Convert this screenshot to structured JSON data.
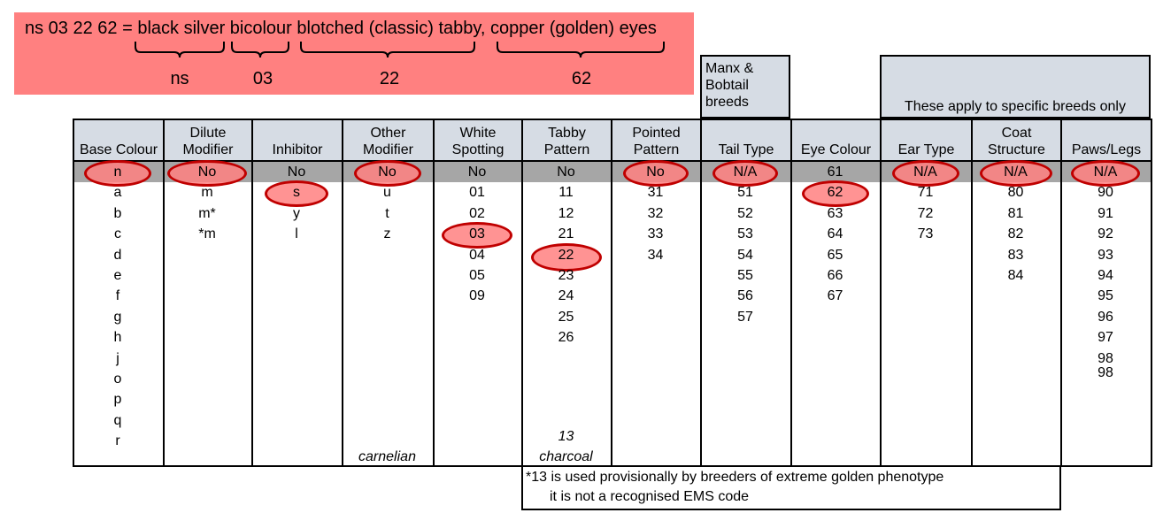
{
  "title": {
    "text": "ns 03 22 62 = black silver bicolour blotched (classic) tabby, copper (golden) eyes",
    "labels": [
      "ns",
      "03",
      "22",
      "62"
    ]
  },
  "groups": {
    "manx": "Manx &\nBobtail\nbreeds",
    "specific": "These apply to specific breeds only"
  },
  "columns": [
    {
      "header": [
        "",
        "Base Colour"
      ],
      "values": [
        "n",
        "a",
        "b",
        "c",
        "d",
        "e",
        "f",
        "g",
        "h",
        "j",
        "o",
        "p",
        "q",
        "r"
      ],
      "footer": ""
    },
    {
      "header": [
        "Dilute",
        "Modifier"
      ],
      "values": [
        "No",
        "m",
        "m*",
        "*m"
      ],
      "footer": ""
    },
    {
      "header": [
        "",
        "Inhibitor"
      ],
      "values": [
        "No",
        "s",
        "y",
        "l"
      ],
      "footer": ""
    },
    {
      "header": [
        "Other",
        "Modifier"
      ],
      "values": [
        "No",
        "u",
        "t",
        "z"
      ],
      "footer": "carnelian"
    },
    {
      "header": [
        "White",
        "Spotting"
      ],
      "values": [
        "No",
        "01",
        "02",
        "03",
        "04",
        "05",
        "09"
      ],
      "footer": ""
    },
    {
      "header": [
        "Tabby",
        "Pattern"
      ],
      "values": [
        "No",
        "11",
        "12",
        "21",
        "22",
        "23",
        "24",
        "25",
        "26"
      ],
      "extra": "13",
      "footer": "charcoal"
    },
    {
      "header": [
        "Pointed",
        "Pattern"
      ],
      "values": [
        "No",
        "31",
        "32",
        "33",
        "34"
      ],
      "footer": ""
    },
    {
      "header": [
        "",
        "Tail Type"
      ],
      "values": [
        "N/A",
        "51",
        "52",
        "53",
        "54",
        "55",
        "56",
        "57"
      ],
      "footer": ""
    },
    {
      "header": [
        "",
        "Eye Colour"
      ],
      "values": [
        "61",
        "62",
        "63",
        "64",
        "65",
        "66",
        "67"
      ],
      "footer": ""
    },
    {
      "header": [
        "",
        "Ear Type"
      ],
      "values": [
        "N/A",
        "71",
        "72",
        "73"
      ],
      "footer": ""
    },
    {
      "header": [
        "Coat",
        "Structure"
      ],
      "values": [
        "N/A",
        "80",
        "81",
        "82",
        "83",
        "84"
      ],
      "footer": ""
    },
    {
      "header": [
        "",
        "Paws/Legs"
      ],
      "values": [
        "N/A",
        "90",
        "91",
        "92",
        "93",
        "94",
        "95",
        "96",
        "97",
        "98",
        "98"
      ],
      "footer": ""
    }
  ],
  "footnote": [
    "*13 is used provisionally by breeders of extreme golden phenotype",
    "it is not a recognised EMS code"
  ],
  "colors": {
    "highlight": "#ff8080",
    "ring": "#c00000",
    "header_bg": "#d6dce4",
    "band": "#a6a6a6"
  }
}
